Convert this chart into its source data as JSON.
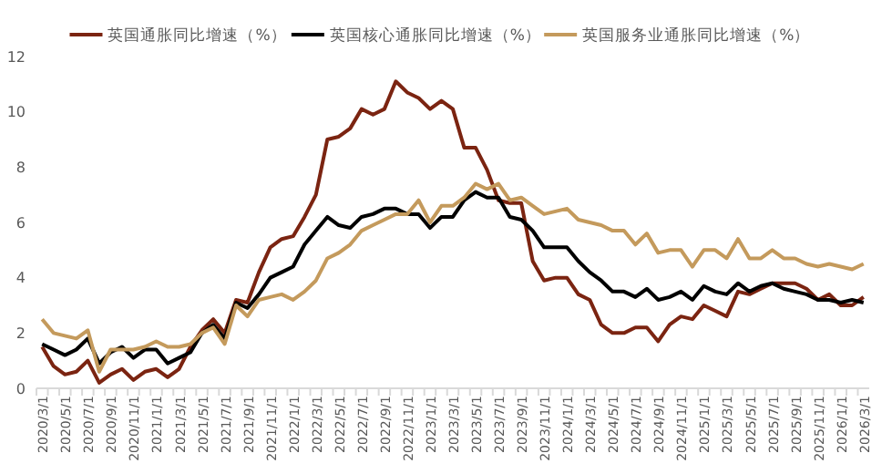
{
  "chart_data": {
    "type": "line",
    "categories": [
      "2020/3/1",
      null,
      "2020/5/1",
      null,
      "2020/7/1",
      null,
      "2020/9/1",
      null,
      "2020/11/1",
      null,
      "2021/1/1",
      null,
      "2021/3/1",
      null,
      "2021/5/1",
      null,
      "2021/7/1",
      null,
      "2021/9/1",
      null,
      "2021/11/1",
      null,
      "2022/1/1",
      null,
      "2022/3/1",
      null,
      "2022/5/1",
      null,
      "2022/7/1",
      null,
      "2022/9/1",
      null,
      "2022/11/1",
      null,
      "2023/1/1",
      null,
      "2023/3/1",
      null,
      "2023/5/1",
      null,
      "2023/7/1",
      null,
      "2023/9/1",
      null,
      "2023/11/1",
      null,
      "2024/1/1",
      null,
      "2024/3/1",
      null,
      "2024/5/1",
      null,
      "2024/7/1",
      null,
      "2024/9/1",
      null,
      "2024/11/1",
      null,
      "2025/1/1",
      null,
      "2025/3/1",
      null,
      "2025/5/1",
      null,
      "2025/7/1",
      null,
      "2025/9/1",
      null,
      "2025/11/1",
      null,
      "2026/1/1",
      null,
      "2026/3/1"
    ],
    "series": [
      {
        "name": "英国通胀同比增速（%）",
        "color": "#7b2411",
        "values": [
          1.5,
          0.8,
          0.5,
          0.6,
          1.0,
          0.2,
          0.5,
          0.7,
          0.3,
          0.6,
          0.7,
          0.4,
          0.7,
          1.5,
          2.1,
          2.5,
          2.0,
          3.2,
          3.1,
          4.2,
          5.1,
          5.4,
          5.5,
          6.2,
          7.0,
          9.0,
          9.1,
          9.4,
          10.1,
          9.9,
          10.1,
          11.1,
          10.7,
          10.5,
          10.1,
          10.4,
          10.1,
          8.7,
          8.7,
          7.9,
          6.8,
          6.7,
          6.7,
          4.6,
          3.9,
          4.0,
          4.0,
          3.4,
          3.2,
          2.3,
          2.0,
          2.0,
          2.2,
          2.2,
          1.7,
          2.3,
          2.6,
          2.5,
          3.0,
          2.8,
          2.6,
          3.5,
          3.4,
          3.6,
          3.8,
          3.8,
          3.8,
          3.6,
          3.2,
          3.4,
          3.0,
          3.0,
          3.3
        ]
      },
      {
        "name": "英国核心通胀同比增速（%）",
        "color": "#000000",
        "values": [
          1.6,
          1.4,
          1.2,
          1.4,
          1.8,
          0.9,
          1.3,
          1.5,
          1.1,
          1.4,
          1.4,
          0.9,
          1.1,
          1.3,
          2.0,
          2.3,
          1.8,
          3.1,
          2.9,
          3.4,
          4.0,
          4.2,
          4.4,
          5.2,
          5.7,
          6.2,
          5.9,
          5.8,
          6.2,
          6.3,
          6.5,
          6.5,
          6.3,
          6.3,
          5.8,
          6.2,
          6.2,
          6.8,
          7.1,
          6.9,
          6.9,
          6.2,
          6.1,
          5.7,
          5.1,
          5.1,
          5.1,
          4.6,
          4.2,
          3.9,
          3.5,
          3.5,
          3.3,
          3.6,
          3.2,
          3.3,
          3.5,
          3.2,
          3.7,
          3.5,
          3.4,
          3.8,
          3.5,
          3.7,
          3.8,
          3.6,
          3.5,
          3.4,
          3.2,
          3.2,
          3.1,
          3.2,
          3.1
        ]
      },
      {
        "name": "英国服务业通胀同比增速（%）",
        "color": "#c49a5c",
        "values": [
          2.5,
          2.0,
          1.9,
          1.8,
          2.1,
          0.6,
          1.4,
          1.4,
          1.4,
          1.5,
          1.7,
          1.5,
          1.5,
          1.6,
          2.0,
          2.2,
          1.6,
          3.0,
          2.6,
          3.2,
          3.3,
          3.4,
          3.2,
          3.5,
          3.9,
          4.7,
          4.9,
          5.2,
          5.7,
          5.9,
          6.1,
          6.3,
          6.3,
          6.8,
          6.0,
          6.6,
          6.6,
          6.9,
          7.4,
          7.2,
          7.4,
          6.8,
          6.9,
          6.6,
          6.3,
          6.4,
          6.5,
          6.1,
          6.0,
          5.9,
          5.7,
          5.7,
          5.2,
          5.6,
          4.9,
          5.0,
          5.0,
          4.4,
          5.0,
          5.0,
          4.7,
          5.4,
          4.7,
          4.7,
          5.0,
          4.7,
          4.7,
          4.5,
          4.4,
          4.5,
          4.4,
          4.3,
          4.5
        ]
      }
    ],
    "ylim": [
      0,
      12
    ],
    "yticks": [
      0,
      2,
      4,
      6,
      8,
      10,
      12
    ],
    "grid": false,
    "legend": "top",
    "marker": "none",
    "line_style": "solid"
  }
}
